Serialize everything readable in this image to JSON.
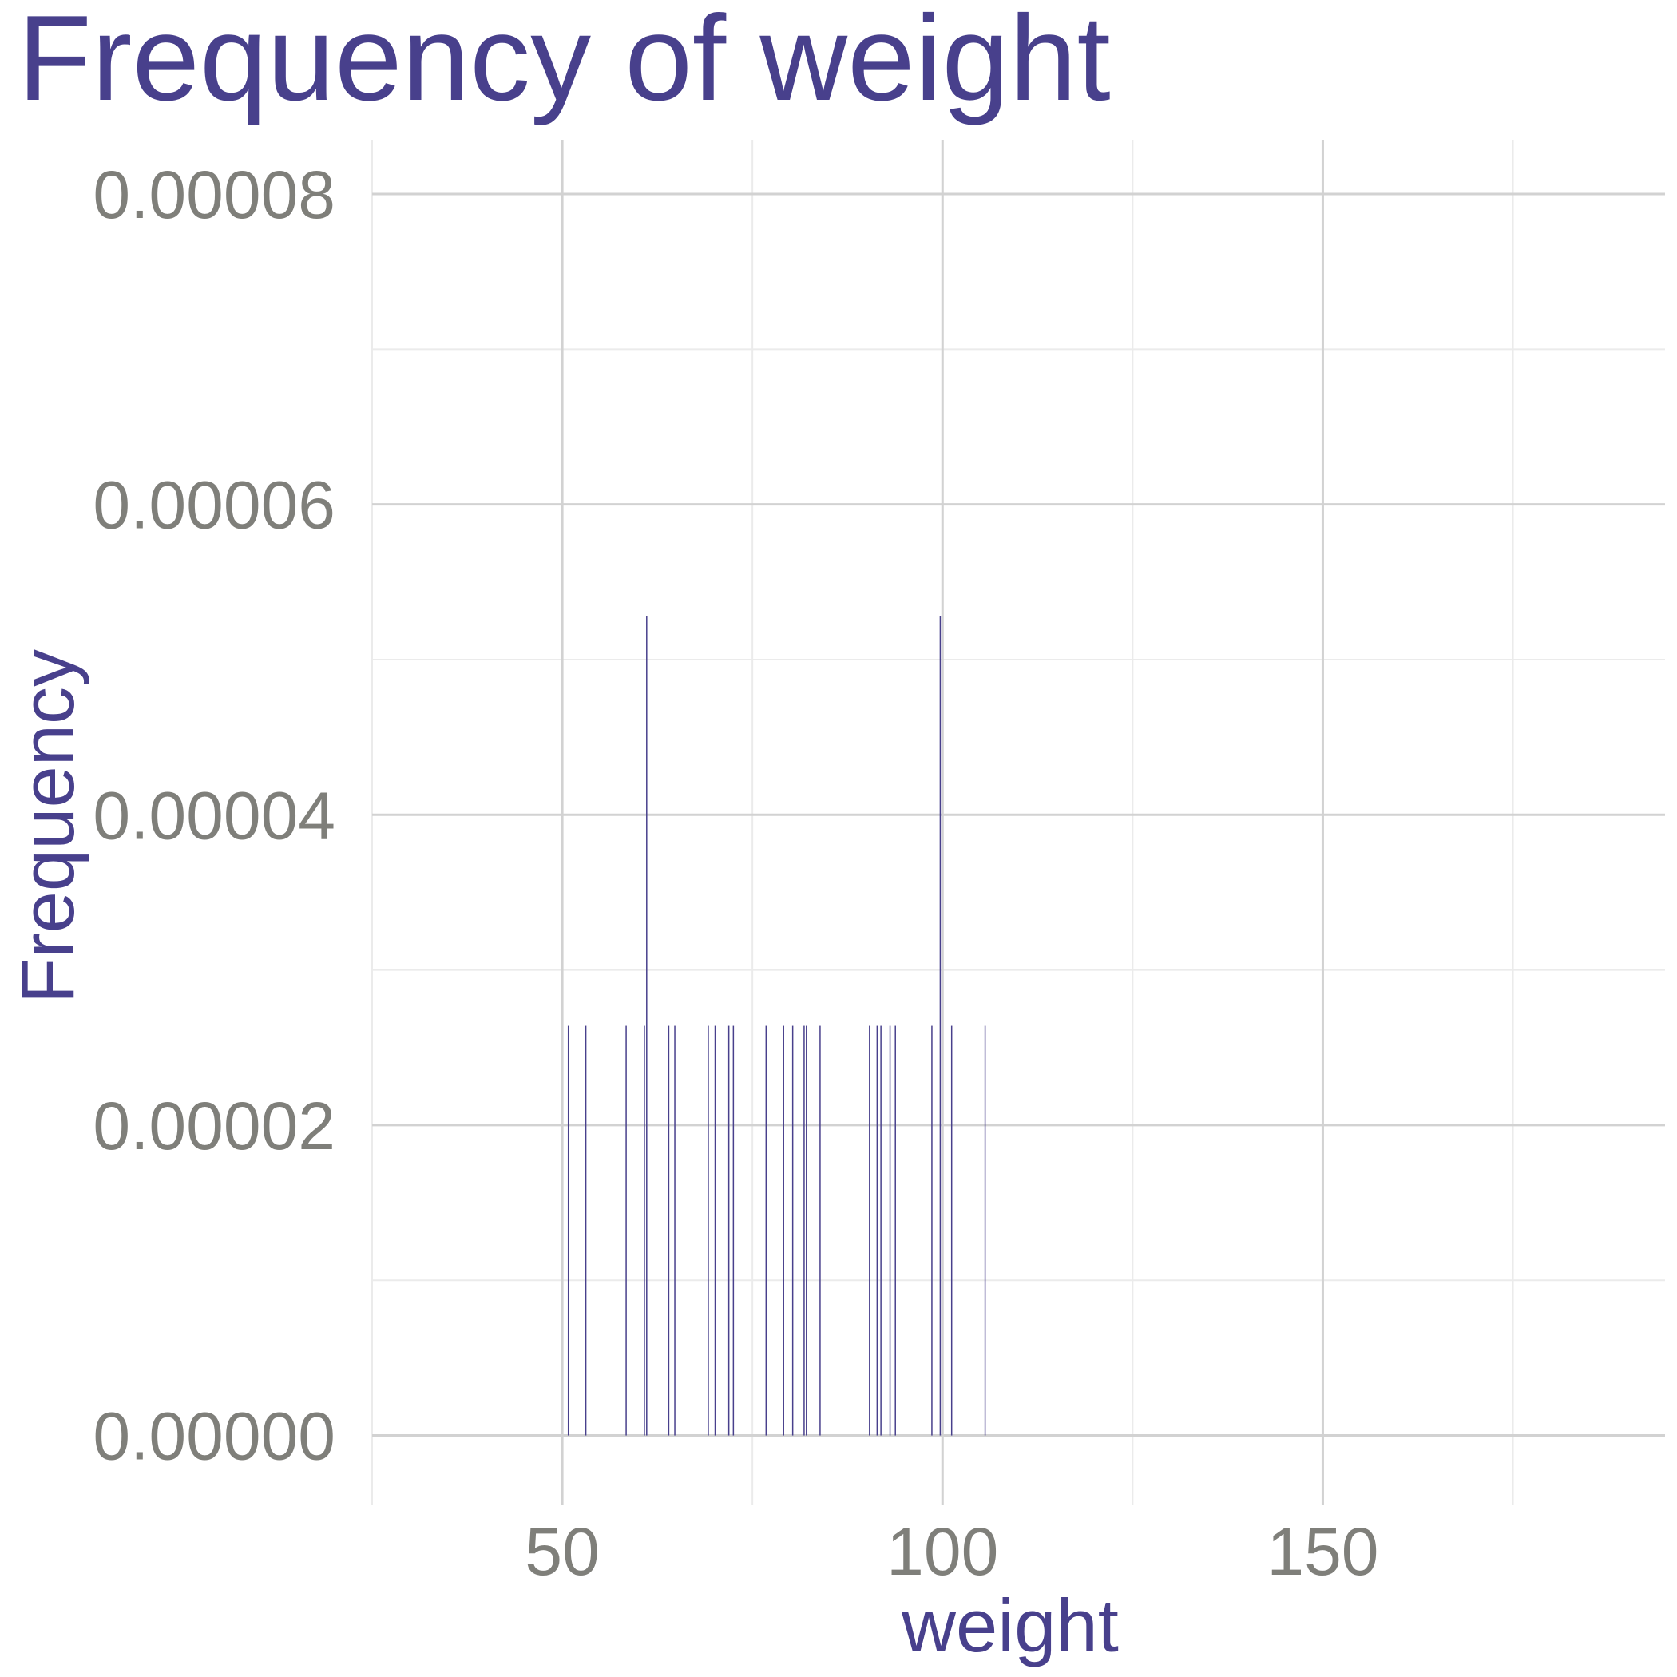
{
  "chart_data": {
    "type": "bar",
    "title": "Frequency of weight",
    "xlabel": "weight",
    "ylabel": "Frequency",
    "xlim": [
      25,
      195
    ],
    "ylim": [
      -4.5e-06,
      8.35e-05
    ],
    "x_ticks": [
      50,
      100,
      150
    ],
    "x_tick_labels": [
      "50",
      "100",
      "150"
    ],
    "x_minor_ticks": [
      25,
      75,
      125,
      175
    ],
    "y_ticks": [
      0,
      2e-05,
      4e-05,
      6e-05,
      8e-05
    ],
    "y_tick_labels": [
      "0.00000",
      "0.00002",
      "0.00004",
      "0.00006",
      "0.00008"
    ],
    "y_minor_ticks": [
      1e-05,
      3e-05,
      5e-05,
      7e-05
    ],
    "grid": true,
    "series": [
      {
        "name": "weight",
        "x": [
          50.8,
          53.1,
          58.4,
          60.8,
          61.1,
          64.0,
          64.8,
          69.2,
          70.1,
          71.9,
          72.5,
          76.8,
          79.1,
          80.3,
          81.8,
          82.1,
          83.9,
          90.4,
          91.4,
          91.9,
          93.1,
          93.8,
          98.6,
          99.7,
          101.2,
          105.6
        ],
        "values": [
          2.64e-05,
          2.64e-05,
          2.64e-05,
          2.64e-05,
          5.28e-05,
          2.64e-05,
          2.64e-05,
          2.64e-05,
          2.64e-05,
          2.64e-05,
          2.64e-05,
          2.64e-05,
          2.64e-05,
          2.64e-05,
          2.64e-05,
          2.64e-05,
          2.64e-05,
          2.64e-05,
          2.64e-05,
          2.64e-05,
          2.64e-05,
          2.64e-05,
          2.64e-05,
          5.28e-05,
          2.64e-05,
          2.64e-05
        ]
      }
    ]
  },
  "colors": {
    "title": "#48408c",
    "axis_title": "#48408c",
    "tick_label": "#7f7f7a",
    "bar": "#48408c",
    "grid_major": "#d2d2d2",
    "grid_minor": "#ebebeb",
    "background": "#ffffff"
  }
}
